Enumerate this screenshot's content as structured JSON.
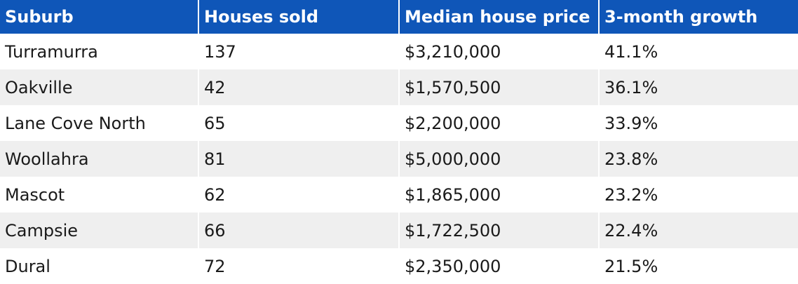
{
  "chart_data": {
    "type": "table",
    "columns": [
      "Suburb",
      "Houses sold",
      "Median house price",
      "3-month growth"
    ],
    "rows": [
      [
        "Turramurra",
        "137",
        "$3,210,000",
        "41.1%"
      ],
      [
        "Oakville",
        "42",
        "$1,570,500",
        "36.1%"
      ],
      [
        "Lane Cove North",
        "65",
        "$2,200,000",
        "33.9%"
      ],
      [
        "Woollahra",
        "81",
        "$5,000,000",
        "23.8%"
      ],
      [
        "Mascot",
        "62",
        "$1,865,000",
        "23.2%"
      ],
      [
        "Campsie",
        "66",
        "$1,722,500",
        "22.4%"
      ],
      [
        "Dural",
        "72",
        "$2,350,000",
        "21.5%"
      ]
    ]
  },
  "colors": {
    "header_bg": "#0f56b8",
    "header_text": "#ffffff",
    "row_alt_bg": "#efefef",
    "row_bg": "#ffffff",
    "cell_text": "#1a1a1a"
  }
}
